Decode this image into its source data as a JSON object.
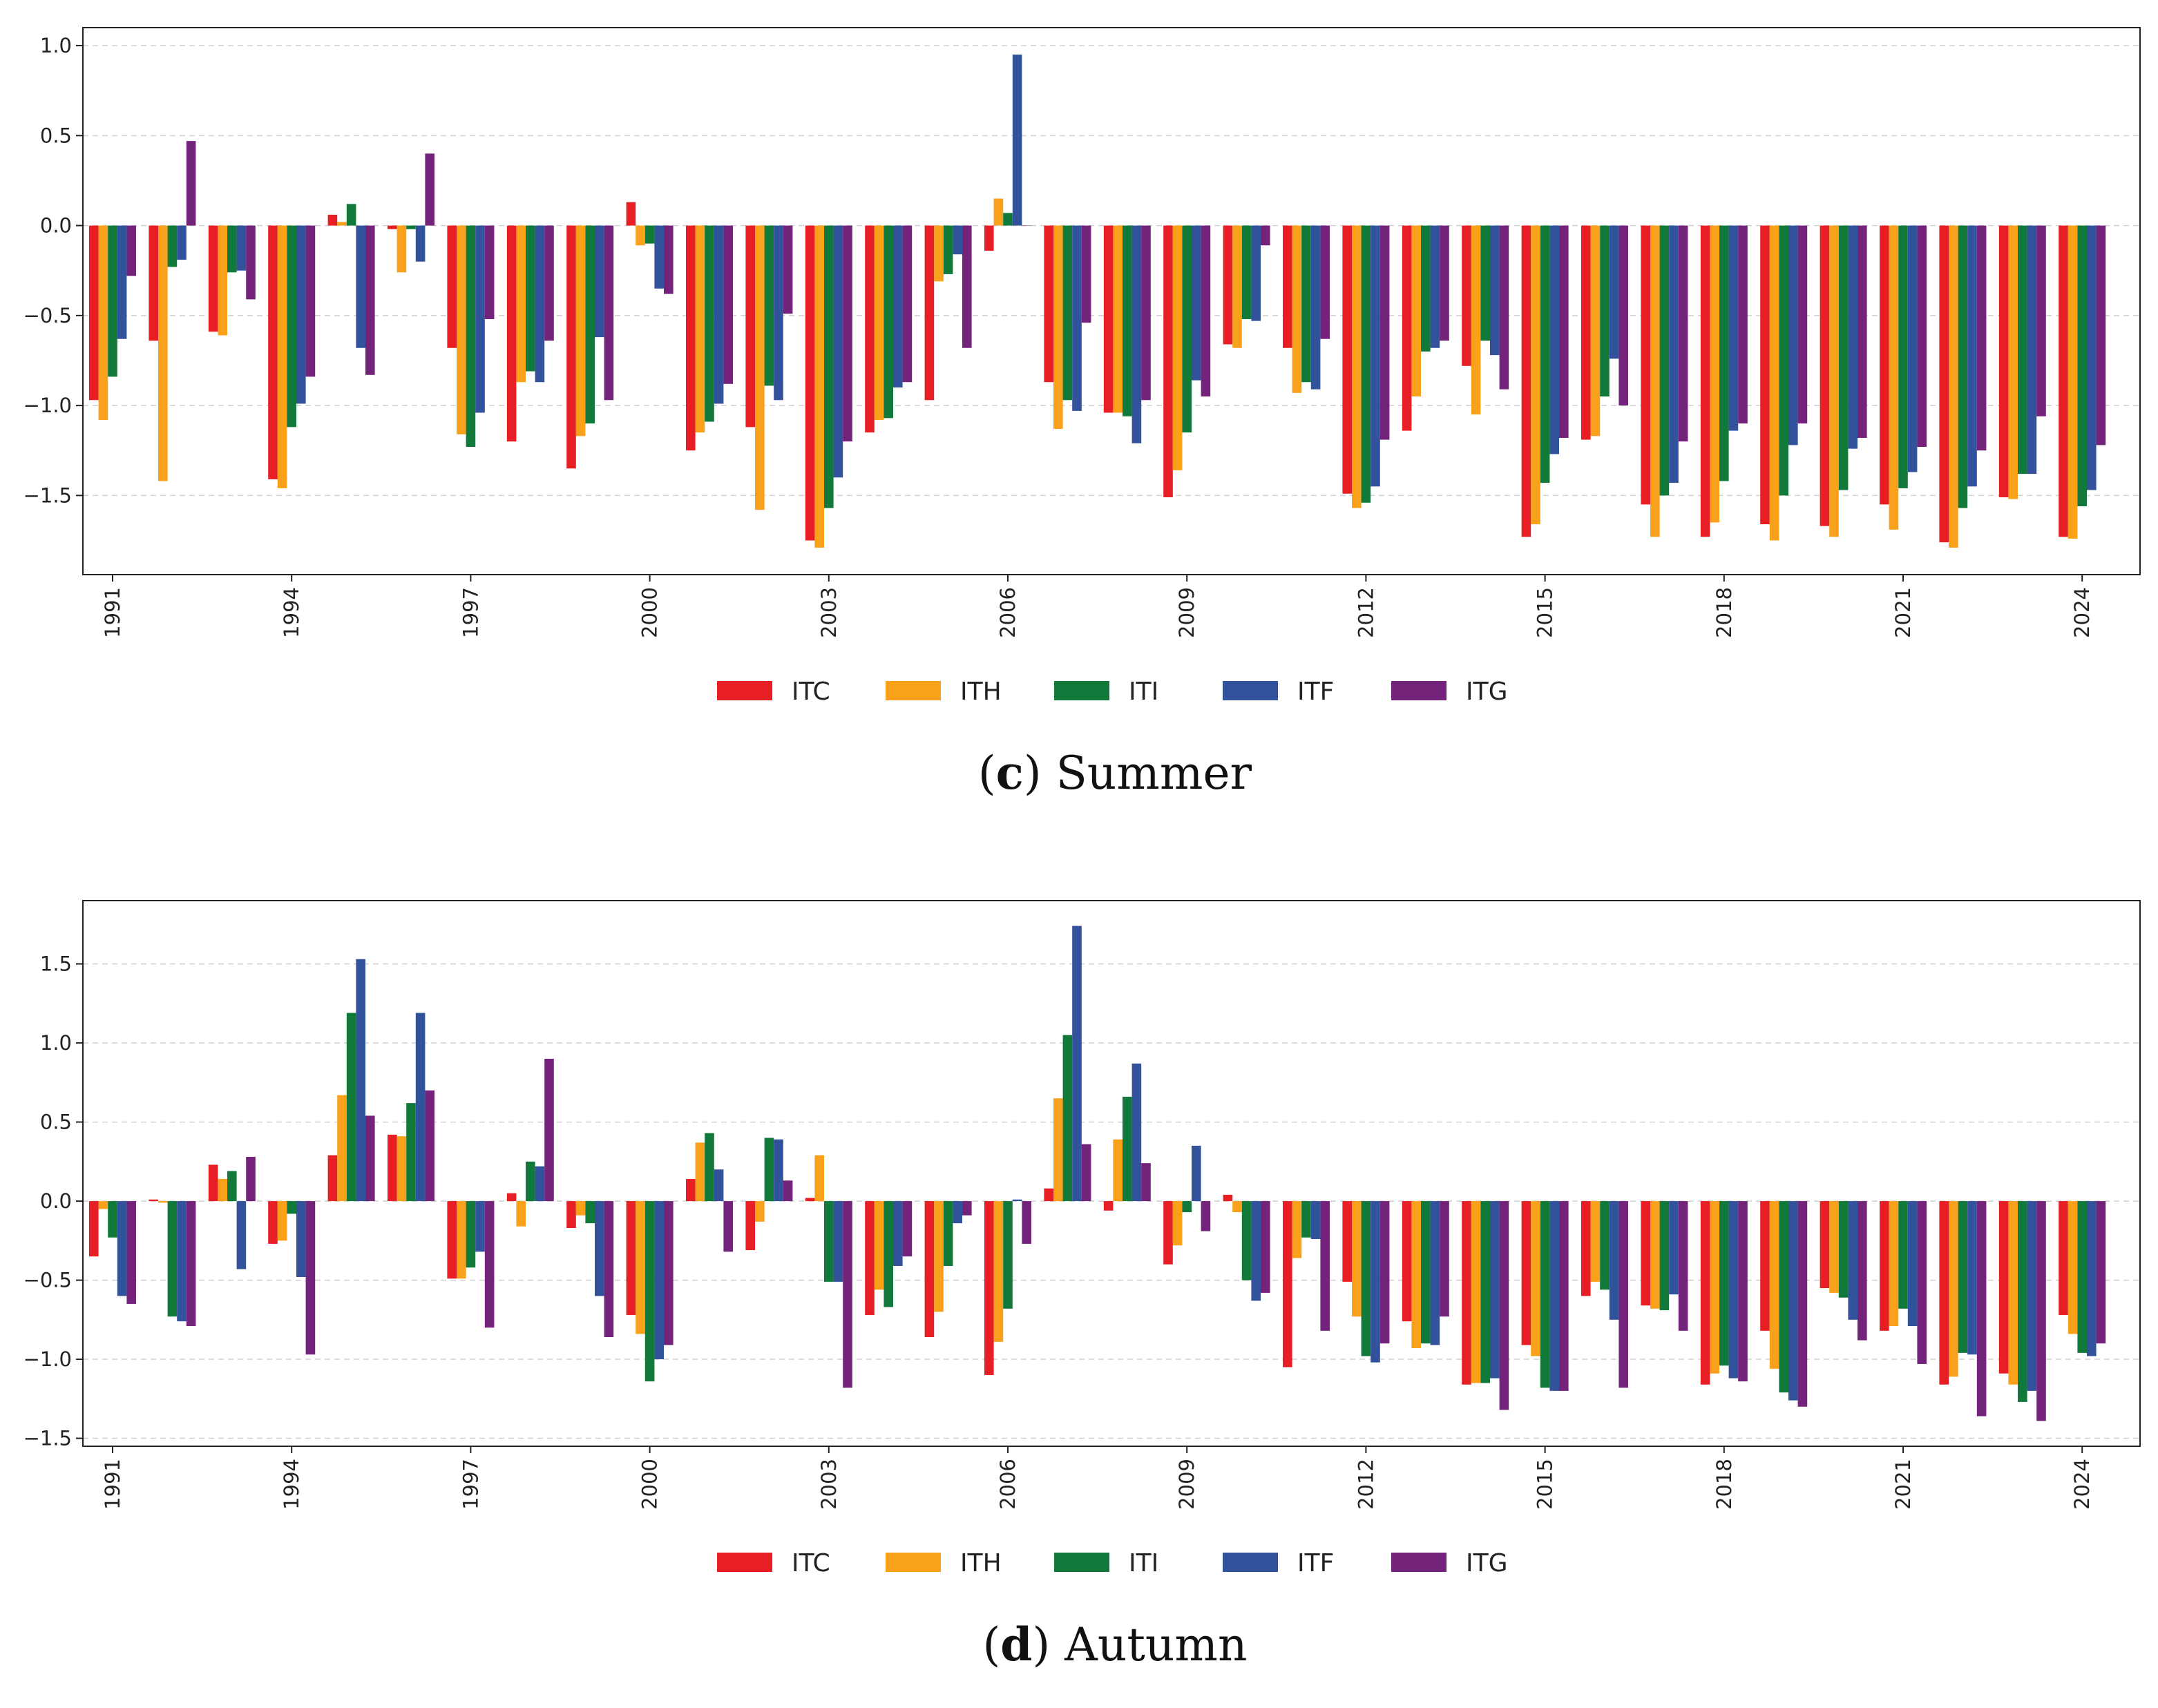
{
  "colors": {
    "ITC": "#e81e25",
    "ITH": "#f9a11b",
    "ITI": "#117a3b",
    "ITF": "#33529c",
    "ITG": "#74237b"
  },
  "chart_data": [
    {
      "type": "bar",
      "panel_letter": "c",
      "title": "Summer",
      "xlabel": "",
      "ylabel": "",
      "ylim": [
        -1.94,
        1.1
      ],
      "yticks": [
        -1.5,
        -1.0,
        -0.5,
        0.0,
        0.5,
        1.0
      ],
      "ytick_labels": [
        "−1.5",
        "−1.0",
        "−0.5",
        "0.0",
        "0.5",
        "1.0"
      ],
      "xtick_labels": [
        "1991",
        "1994",
        "1997",
        "2000",
        "2003",
        "2006",
        "2009",
        "2012",
        "2015",
        "2018",
        "2021",
        "2024"
      ],
      "legend": [
        "ITC",
        "ITH",
        "ITI",
        "ITF",
        "ITG"
      ],
      "legend_position": "bottom-center",
      "grid": "y-dashed",
      "categories": [
        "1991",
        "1992",
        "1993",
        "1994",
        "1995",
        "1996",
        "1997",
        "1998",
        "1999",
        "2000",
        "2001",
        "2002",
        "2003",
        "2004",
        "2005",
        "2006",
        "2007",
        "2008",
        "2009",
        "2010",
        "2011",
        "2012",
        "2013",
        "2014",
        "2015",
        "2016",
        "2017",
        "2018",
        "2019",
        "2020",
        "2021",
        "2022",
        "2023",
        "2024"
      ],
      "series": [
        {
          "name": "ITC",
          "values": [
            -0.97,
            -0.64,
            -0.59,
            -1.41,
            0.06,
            -0.02,
            -0.68,
            -1.2,
            -1.35,
            0.13,
            -1.25,
            -1.12,
            -1.75,
            -1.15,
            -0.97,
            -0.14,
            -0.87,
            -1.04,
            -1.51,
            -0.66,
            -0.68,
            -1.49,
            -1.14,
            -0.78,
            -1.73,
            -1.19,
            -1.55,
            -1.73,
            -1.66,
            -1.67,
            -1.55,
            -1.76,
            -1.51,
            -1.73
          ]
        },
        {
          "name": "ITH",
          "values": [
            -1.08,
            -1.42,
            -0.61,
            -1.46,
            0.02,
            -0.26,
            -1.16,
            -0.87,
            -1.17,
            -0.11,
            -1.15,
            -1.58,
            -1.79,
            -1.08,
            -0.31,
            0.15,
            -1.13,
            -1.04,
            -1.36,
            -0.68,
            -0.93,
            -1.57,
            -0.95,
            -1.05,
            -1.66,
            -1.17,
            -1.73,
            -1.65,
            -1.75,
            -1.73,
            -1.69,
            -1.79,
            -1.52,
            -1.74
          ]
        },
        {
          "name": "ITI",
          "values": [
            -0.84,
            -0.23,
            -0.26,
            -1.12,
            0.12,
            -0.02,
            -1.23,
            -0.81,
            -1.1,
            -0.1,
            -1.09,
            -0.89,
            -1.57,
            -1.07,
            -0.27,
            0.07,
            -0.97,
            -1.06,
            -1.15,
            -0.52,
            -0.87,
            -1.54,
            -0.7,
            -0.64,
            -1.43,
            -0.95,
            -1.5,
            -1.42,
            -1.5,
            -1.47,
            -1.46,
            -1.57,
            -1.38,
            -1.56
          ]
        },
        {
          "name": "ITF",
          "values": [
            -0.63,
            -0.19,
            -0.25,
            -0.99,
            -0.68,
            -0.2,
            -1.04,
            -0.87,
            -0.62,
            -0.35,
            -0.99,
            -0.97,
            -1.4,
            -0.9,
            -0.16,
            0.95,
            -1.03,
            -1.21,
            -0.86,
            -0.53,
            -0.91,
            -1.45,
            -0.68,
            -0.72,
            -1.27,
            -0.74,
            -1.43,
            -1.14,
            -1.22,
            -1.24,
            -1.37,
            -1.45,
            -1.38,
            -1.47
          ]
        },
        {
          "name": "ITG",
          "values": [
            -0.28,
            0.47,
            -0.41,
            -0.84,
            -0.83,
            0.4,
            -0.52,
            -0.64,
            -0.97,
            -0.38,
            -0.88,
            -0.49,
            -1.2,
            -0.87,
            -0.68,
            0.0,
            -0.54,
            -0.97,
            -0.95,
            -0.11,
            -0.63,
            -1.19,
            -0.64,
            -0.91,
            -1.18,
            -1.0,
            -1.2,
            -1.1,
            -1.1,
            -1.18,
            -1.23,
            -1.25,
            -1.06,
            -1.22
          ]
        }
      ]
    },
    {
      "type": "bar",
      "panel_letter": "d",
      "title": "Autumn",
      "xlabel": "",
      "ylabel": "",
      "ylim": [
        -1.55,
        1.9
      ],
      "yticks": [
        -1.5,
        -1.0,
        -0.5,
        0.0,
        0.5,
        1.0,
        1.5
      ],
      "ytick_labels": [
        "−1.5",
        "−1.0",
        "−0.5",
        "0.0",
        "0.5",
        "1.0",
        "1.5"
      ],
      "xtick_labels": [
        "1991",
        "1994",
        "1997",
        "2000",
        "2003",
        "2006",
        "2009",
        "2012",
        "2015",
        "2018",
        "2021",
        "2024"
      ],
      "legend": [
        "ITC",
        "ITH",
        "ITI",
        "ITF",
        "ITG"
      ],
      "legend_position": "bottom-center",
      "grid": "y-dashed",
      "categories": [
        "1991",
        "1992",
        "1993",
        "1994",
        "1995",
        "1996",
        "1997",
        "1998",
        "1999",
        "2000",
        "2001",
        "2002",
        "2003",
        "2004",
        "2005",
        "2006",
        "2007",
        "2008",
        "2009",
        "2010",
        "2011",
        "2012",
        "2013",
        "2014",
        "2015",
        "2016",
        "2017",
        "2018",
        "2019",
        "2020",
        "2021",
        "2022",
        "2023",
        "2024"
      ],
      "series": [
        {
          "name": "ITC",
          "values": [
            -0.35,
            0.01,
            0.23,
            -0.27,
            0.29,
            0.42,
            -0.49,
            0.05,
            -0.17,
            -0.72,
            0.14,
            -0.31,
            0.02,
            -0.72,
            -0.86,
            -1.1,
            0.08,
            -0.06,
            -0.4,
            0.04,
            -1.05,
            -0.51,
            -0.76,
            -1.16,
            -0.91,
            -0.6,
            -0.66,
            -1.16,
            -0.82,
            -0.55,
            -0.82,
            -1.16,
            -1.09,
            -0.72
          ]
        },
        {
          "name": "ITH",
          "values": [
            -0.05,
            -0.01,
            0.14,
            -0.25,
            0.67,
            0.41,
            -0.49,
            -0.16,
            -0.09,
            -0.84,
            0.37,
            -0.13,
            0.29,
            -0.56,
            -0.7,
            -0.89,
            0.65,
            0.39,
            -0.28,
            -0.07,
            -0.36,
            -0.73,
            -0.93,
            -1.15,
            -0.98,
            -0.51,
            -0.68,
            -1.09,
            -1.06,
            -0.58,
            -0.79,
            -1.11,
            -1.16,
            -0.84
          ]
        },
        {
          "name": "ITI",
          "values": [
            -0.23,
            -0.73,
            0.19,
            -0.08,
            1.19,
            0.62,
            -0.42,
            0.25,
            -0.14,
            -1.14,
            0.43,
            0.4,
            -0.51,
            -0.67,
            -0.41,
            -0.68,
            1.05,
            0.66,
            -0.07,
            -0.5,
            -0.23,
            -0.98,
            -0.9,
            -1.15,
            -1.18,
            -0.56,
            -0.69,
            -1.04,
            -1.21,
            -0.61,
            -0.68,
            -0.96,
            -1.27,
            -0.96
          ]
        },
        {
          "name": "ITF",
          "values": [
            -0.6,
            -0.76,
            -0.43,
            -0.48,
            1.53,
            1.19,
            -0.32,
            0.22,
            -0.6,
            -1.0,
            0.2,
            0.39,
            -0.51,
            -0.41,
            -0.14,
            0.01,
            1.74,
            0.87,
            0.35,
            -0.63,
            -0.24,
            -1.02,
            -0.91,
            -1.12,
            -1.2,
            -0.75,
            -0.59,
            -1.12,
            -1.26,
            -0.75,
            -0.79,
            -0.97,
            -1.2,
            -0.98
          ]
        },
        {
          "name": "ITG",
          "values": [
            -0.65,
            -0.79,
            0.28,
            -0.97,
            0.54,
            0.7,
            -0.8,
            0.9,
            -0.86,
            -0.91,
            -0.32,
            0.13,
            -1.18,
            -0.35,
            -0.09,
            -0.27,
            0.36,
            0.24,
            -0.19,
            -0.58,
            -0.82,
            -0.9,
            -0.73,
            -1.32,
            -1.2,
            -1.18,
            -0.82,
            -1.14,
            -1.3,
            -0.88,
            -1.03,
            -1.36,
            -1.39,
            -0.9
          ]
        }
      ]
    }
  ]
}
